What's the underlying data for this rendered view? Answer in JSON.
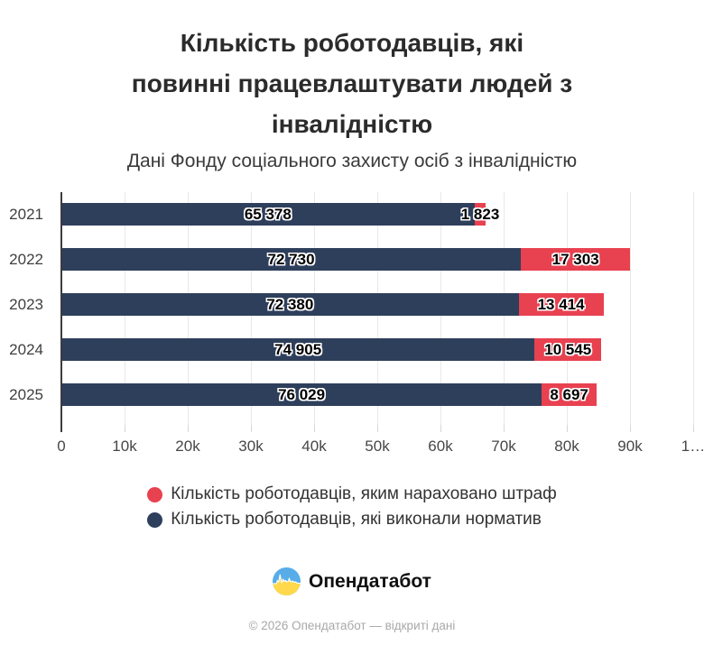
{
  "header": {
    "title_lines": [
      "Кількість роботодавців, які",
      "повинні працевлаштувати людей з",
      "інвалідністю"
    ],
    "subtitle": "Дані Фонду соціального захисту осіб з інвалідністю"
  },
  "chart_data": {
    "type": "bar",
    "orientation": "horizontal",
    "stacked": true,
    "title": "Кількість роботодавців, які повинні працевлаштувати людей з інвалідністю",
    "subtitle": "Дані Фонду соціального захисту осіб з інвалідністю",
    "categories": [
      "2021",
      "2022",
      "2023",
      "2024",
      "2025"
    ],
    "series": [
      {
        "name": "Кількість роботодавців, які виконали норматив",
        "color": "#2e3f5c",
        "values": [
          65378,
          72730,
          72380,
          74905,
          76029
        ],
        "data_labels": [
          "65 378",
          "72 730",
          "72 380",
          "74 905",
          "76 029"
        ]
      },
      {
        "name": "Кількість роботодавців, яким нараховано штраф",
        "color": "#e84150",
        "values": [
          1823,
          17303,
          13414,
          10545,
          8697
        ],
        "data_labels": [
          "1 823",
          "17 303",
          "13 414",
          "10 545",
          "8 697"
        ]
      }
    ],
    "xlim": [
      0,
      100000
    ],
    "xticks": [
      0,
      10000,
      20000,
      30000,
      40000,
      50000,
      60000,
      70000,
      80000,
      90000,
      100000
    ],
    "xtick_labels": [
      "0",
      "10k",
      "20k",
      "30k",
      "40k",
      "50k",
      "60k",
      "70k",
      "80k",
      "90k",
      "1…"
    ],
    "grid": true,
    "legend_position": "bottom"
  },
  "legend": {
    "items": [
      {
        "label": "Кількість роботодавців, яким нараховано штраф",
        "color": "#e84150"
      },
      {
        "label": "Кількість роботодавців, які виконали норматив",
        "color": "#2e3f5c"
      }
    ]
  },
  "footer": {
    "brand": "Опендатабот",
    "copyright": "© 2026 Опендатабот — відкриті дані",
    "logo_colors": {
      "top": "#58ade8",
      "bottom": "#ffd94b",
      "pulse": "#ffffff"
    }
  }
}
